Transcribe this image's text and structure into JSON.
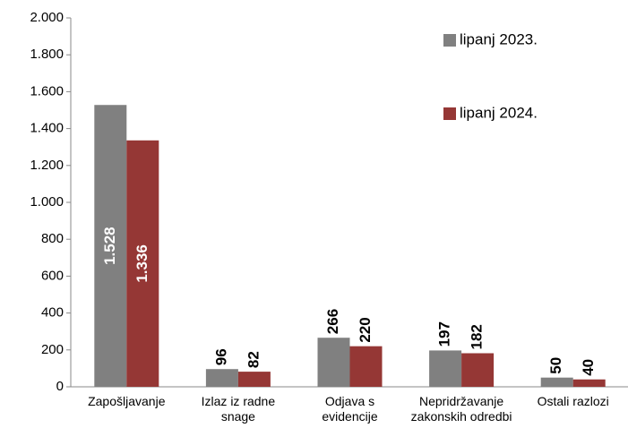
{
  "chart_data": {
    "type": "bar",
    "categories": [
      "Zapošljavanje",
      "Izlaz iz radne snage",
      "Odjava s evidencije",
      "Nepridržavanje zakonskih odredbi",
      "Ostali razlozi"
    ],
    "series": [
      {
        "name": "lipanj 2023.",
        "color": "#808080",
        "values": [
          1528,
          96,
          266,
          197,
          50
        ],
        "value_labels": [
          "1.528",
          "96",
          "266",
          "197",
          "50"
        ]
      },
      {
        "name": "lipanj 2024.",
        "color": "#953735",
        "values": [
          1336,
          82,
          220,
          182,
          40
        ],
        "value_labels": [
          "1.336",
          "82",
          "220",
          "182",
          "40"
        ]
      }
    ],
    "ylim": [
      0,
      2000
    ],
    "yticks": [
      0,
      200,
      400,
      600,
      800,
      {
        "value": 1000,
        "label": "1.000"
      },
      {
        "value": 1200,
        "label": "1.200"
      },
      {
        "value": 1400,
        "label": "1.400"
      },
      {
        "value": 1600,
        "label": "1.600"
      },
      {
        "value": 1800,
        "label": "1.800"
      },
      {
        "value": 2000,
        "label": "2.000"
      }
    ],
    "grid": false,
    "legend": "top-right"
  }
}
